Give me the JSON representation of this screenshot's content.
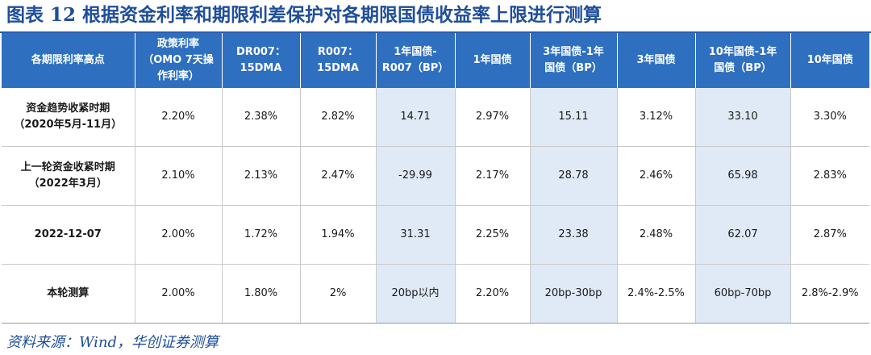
{
  "title": "图表 12  根据资金利率和期限利差保护对各期限国债收益率上限进行测算",
  "headers": [
    "各期限利率高点",
    "政策利率\n（OMO 7天操\n作利率）",
    "DR007：\n15DMA",
    "R007：\n15DMA",
    "1年国债-\nR007（BP）",
    "1年国债",
    "3年国债-1年\n国债（BP）",
    "3年国债",
    "10年国债-1年\n国债（BP）",
    "10年国债"
  ],
  "rows": [
    {
      "label": "资金趋势收紧时期\n（2020年5月-11月）",
      "values": [
        "2.20%",
        "2.38%",
        "2.82%",
        "14.71",
        "2.97%",
        "15.11",
        "3.12%",
        "33.10",
        "3.30%"
      ]
    },
    {
      "label": "上一轮资金收紧时期\n（2022年3月）",
      "values": [
        "2.10%",
        "2.13%",
        "2.47%",
        "-29.99",
        "2.17%",
        "28.78",
        "2.46%",
        "65.98",
        "2.83%"
      ]
    },
    {
      "label": "2022-12-07",
      "values": [
        "2.00%",
        "1.72%",
        "1.94%",
        "31.31",
        "2.25%",
        "23.38",
        "2.48%",
        "62.07",
        "2.87%"
      ]
    },
    {
      "label": "本轮测算",
      "values": [
        "2.00%",
        "1.80%",
        "2%",
        "20bp以内",
        "2.20%",
        "20bp-30bp",
        "2.4%-2.5%",
        "60bp-70bp",
        "2.8%-2.9%"
      ]
    }
  ],
  "source": "资料来源：Wind，华创证券测算",
  "colors": {
    "header_bg": "#2e6fc0",
    "highlight_col": "#dfeaf6",
    "title": "#1f4e9a"
  }
}
